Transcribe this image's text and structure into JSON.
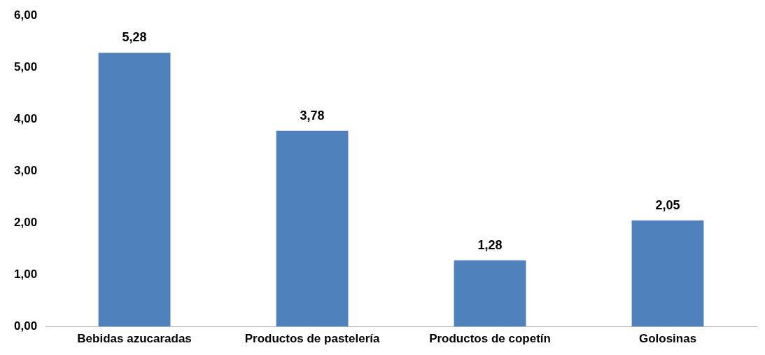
{
  "chart_data": {
    "type": "bar",
    "categories": [
      "Bebidas azucaradas",
      "Productos de pastelería",
      "Productos de copetín",
      "Golosinas"
    ],
    "values": [
      5.28,
      3.78,
      1.28,
      2.05
    ],
    "value_labels": [
      "5,28",
      "3,78",
      "1,28",
      "2,05"
    ],
    "color": "#4f81bd",
    "ylim": [
      0,
      6
    ],
    "yticks": [
      {
        "value": 0,
        "label": "0,00"
      },
      {
        "value": 1,
        "label": "1,00"
      },
      {
        "value": 2,
        "label": "2,00"
      },
      {
        "value": 3,
        "label": "3,00"
      },
      {
        "value": 4,
        "label": "4,00"
      },
      {
        "value": 5,
        "label": "5,00"
      },
      {
        "value": 6,
        "label": "6,00"
      }
    ],
    "grid": false,
    "legend": false
  }
}
